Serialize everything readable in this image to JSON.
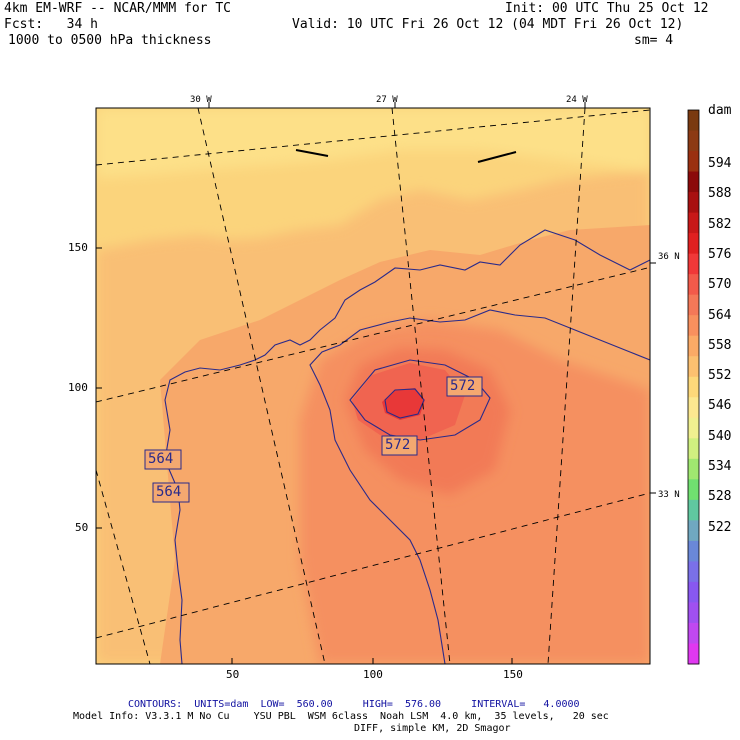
{
  "header": {
    "model": "4km EM-WRF -- NCAR/MMM for TC",
    "init": "Init: 00 UTC Thu 25 Oct 12",
    "fcst": "Fcst:   34 h",
    "valid": "Valid: 10 UTC Fri 26 Oct 12 (04 MDT Fri 26 Oct 12)",
    "field": "1000 to 0500 hPa thickness",
    "smooth": "sm= 4"
  },
  "map": {
    "lon_labels": [
      "30 W",
      "27 W",
      "24 W"
    ],
    "lat_labels": [
      "36 N",
      "33 N"
    ],
    "x_ticks": [
      "50",
      "100",
      "150"
    ],
    "y_ticks": [
      "150",
      "100",
      "50"
    ],
    "contour_labels": [
      "572",
      "572",
      "564",
      "564"
    ]
  },
  "colorbar": {
    "unit": "dam",
    "levels": [
      "594",
      "588",
      "582",
      "576",
      "570",
      "564",
      "558",
      "552",
      "546",
      "540",
      "534",
      "528",
      "522"
    ],
    "colors": [
      "#7a3a10",
      "#8c3a14",
      "#9a3010",
      "#8b0a0a",
      "#a81010",
      "#c81818",
      "#e02020",
      "#f03838",
      "#f25a4a",
      "#f47858",
      "#f8905e",
      "#fbaa66",
      "#fcc070",
      "#fdd87a",
      "#fce890",
      "#f0f090",
      "#d0f080",
      "#a0e870",
      "#70e070",
      "#60c8a0",
      "#70a8c0",
      "#6a88d8",
      "#7a70e8",
      "#8858f0",
      "#a050f0",
      "#c048f0",
      "#e038f0"
    ]
  },
  "footer": {
    "contours": "CONTOURS:  UNITS=dam  LOW=  560.00     HIGH=  576.00     INTERVAL=   4.0000",
    "model_info": "Model Info: V3.3.1 M No Cu    YSU PBL  WSM 6class  Noah LSM  4.0 km,  35 levels,   20 sec",
    "model_info2": "DIFF, simple KM, 2D Smagor"
  }
}
